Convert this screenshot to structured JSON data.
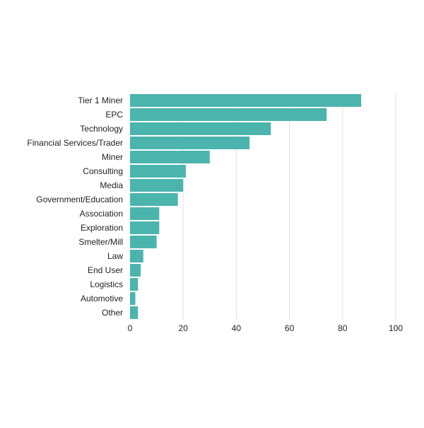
{
  "chart_data": {
    "type": "bar",
    "orientation": "horizontal",
    "title": "",
    "xlabel": "",
    "ylabel": "",
    "xlim": [
      0,
      100
    ],
    "ticks": [
      0,
      20,
      40,
      60,
      80,
      100
    ],
    "grid": true,
    "legend": "none",
    "bar_color": "#4bb5ad",
    "categories": [
      "Tier 1 Miner",
      "EPC",
      "Technology",
      "Financial Services/Trader",
      "Miner",
      "Consulting",
      "Media",
      "Government/Education",
      "Association",
      "Exploration",
      "Smelter/Mill",
      "Law",
      "End User",
      "Logistics",
      "Automotive",
      "Other"
    ],
    "values": [
      87,
      74,
      53,
      45,
      30,
      21,
      20,
      18,
      11,
      11,
      10,
      5,
      4,
      3,
      2,
      3
    ]
  }
}
